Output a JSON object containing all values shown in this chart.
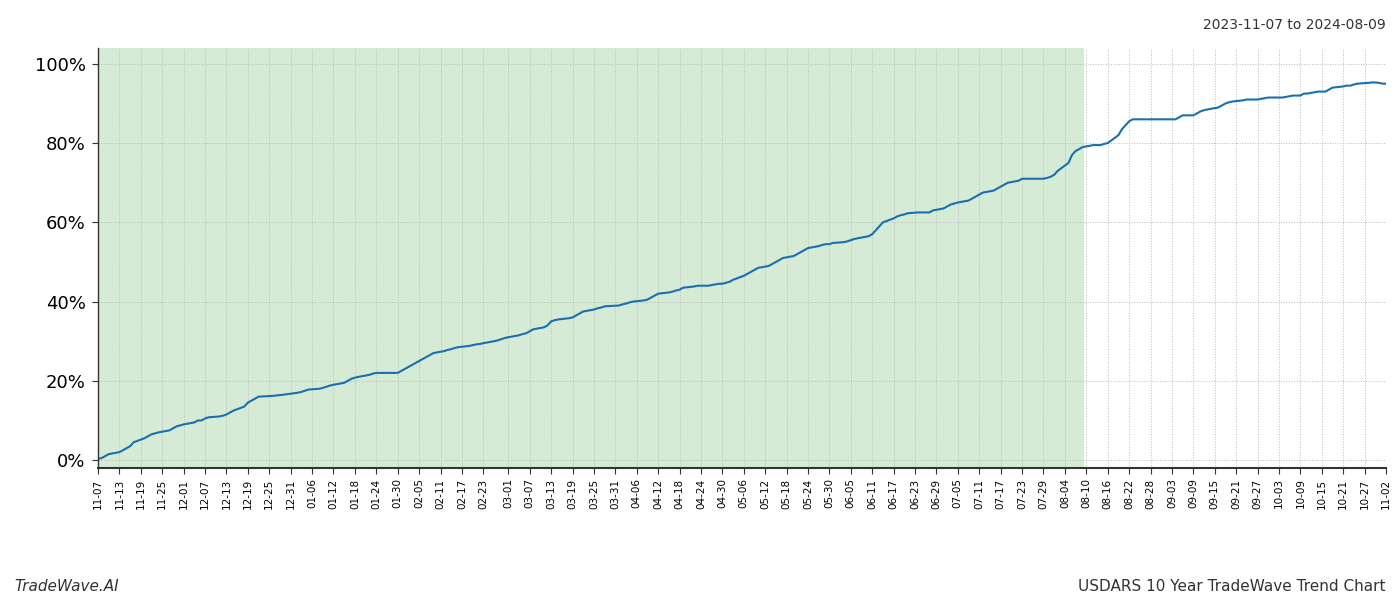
{
  "title_top_right": "2023-11-07 to 2024-08-09",
  "title_bottom_right": "USDARS 10 Year TradeWave Trend Chart",
  "title_bottom_left": "TradeWave.AI",
  "line_color": "#1a6faf",
  "line_width": 1.5,
  "fill_color": "#d6ebd6",
  "fill_alpha": 1.0,
  "fill_start_date": "2023-11-07",
  "fill_end_date": "2024-08-09",
  "background_color": "#ffffff",
  "grid_color": "#bbbbbb",
  "grid_style": ":",
  "ylim": [
    -2,
    104
  ],
  "yticks": [
    0,
    20,
    40,
    60,
    80,
    100
  ],
  "x_start": "2023-11-07",
  "x_end": "2024-11-02",
  "data_points": [
    [
      "2023-11-07",
      0.3
    ],
    [
      "2023-11-08",
      0.5
    ],
    [
      "2023-11-09",
      1.0
    ],
    [
      "2023-11-10",
      1.5
    ],
    [
      "2023-11-13",
      2.0
    ],
    [
      "2023-11-14",
      2.5
    ],
    [
      "2023-11-15",
      3.0
    ],
    [
      "2023-11-16",
      3.5
    ],
    [
      "2023-11-17",
      4.5
    ],
    [
      "2023-11-20",
      5.5
    ],
    [
      "2023-11-21",
      6.0
    ],
    [
      "2023-11-22",
      6.5
    ],
    [
      "2023-11-24",
      7.0
    ],
    [
      "2023-11-27",
      7.5
    ],
    [
      "2023-11-28",
      8.0
    ],
    [
      "2023-11-29",
      8.5
    ],
    [
      "2023-12-01",
      9.0
    ],
    [
      "2023-12-04",
      9.5
    ],
    [
      "2023-12-05",
      10.0
    ],
    [
      "2023-12-06",
      10.0
    ],
    [
      "2023-12-07",
      10.5
    ],
    [
      "2023-12-08",
      10.8
    ],
    [
      "2023-12-11",
      11.0
    ],
    [
      "2023-12-12",
      11.2
    ],
    [
      "2023-12-13",
      11.5
    ],
    [
      "2023-12-14",
      12.0
    ],
    [
      "2023-12-15",
      12.5
    ],
    [
      "2023-12-18",
      13.5
    ],
    [
      "2023-12-19",
      14.5
    ],
    [
      "2023-12-20",
      15.0
    ],
    [
      "2023-12-21",
      15.5
    ],
    [
      "2023-12-22",
      16.0
    ],
    [
      "2023-12-26",
      16.2
    ],
    [
      "2023-12-27",
      16.3
    ],
    [
      "2023-12-28",
      16.4
    ],
    [
      "2023-12-29",
      16.5
    ],
    [
      "2024-01-02",
      17.0
    ],
    [
      "2024-01-03",
      17.2
    ],
    [
      "2024-01-04",
      17.5
    ],
    [
      "2024-01-05",
      17.8
    ],
    [
      "2024-01-08",
      18.0
    ],
    [
      "2024-01-09",
      18.2
    ],
    [
      "2024-01-10",
      18.5
    ],
    [
      "2024-01-11",
      18.8
    ],
    [
      "2024-01-12",
      19.0
    ],
    [
      "2024-01-15",
      19.5
    ],
    [
      "2024-01-16",
      20.0
    ],
    [
      "2024-01-17",
      20.5
    ],
    [
      "2024-01-18",
      20.8
    ],
    [
      "2024-01-19",
      21.0
    ],
    [
      "2024-01-22",
      21.5
    ],
    [
      "2024-01-23",
      21.8
    ],
    [
      "2024-01-24",
      22.0
    ],
    [
      "2024-01-25",
      22.0
    ],
    [
      "2024-01-26",
      22.0
    ],
    [
      "2024-01-29",
      22.0
    ],
    [
      "2024-01-30",
      22.0
    ],
    [
      "2024-01-31",
      22.5
    ],
    [
      "2024-02-01",
      23.0
    ],
    [
      "2024-02-02",
      23.5
    ],
    [
      "2024-02-05",
      25.0
    ],
    [
      "2024-02-06",
      25.5
    ],
    [
      "2024-02-07",
      26.0
    ],
    [
      "2024-02-08",
      26.5
    ],
    [
      "2024-02-09",
      27.0
    ],
    [
      "2024-02-12",
      27.5
    ],
    [
      "2024-02-13",
      27.8
    ],
    [
      "2024-02-14",
      28.0
    ],
    [
      "2024-02-15",
      28.3
    ],
    [
      "2024-02-16",
      28.5
    ],
    [
      "2024-02-19",
      28.8
    ],
    [
      "2024-02-20",
      29.0
    ],
    [
      "2024-02-21",
      29.2
    ],
    [
      "2024-02-22",
      29.3
    ],
    [
      "2024-02-23",
      29.5
    ],
    [
      "2024-02-26",
      30.0
    ],
    [
      "2024-02-27",
      30.2
    ],
    [
      "2024-02-28",
      30.5
    ],
    [
      "2024-02-29",
      30.8
    ],
    [
      "2024-03-01",
      31.0
    ],
    [
      "2024-03-04",
      31.5
    ],
    [
      "2024-03-05",
      31.8
    ],
    [
      "2024-03-06",
      32.0
    ],
    [
      "2024-03-07",
      32.5
    ],
    [
      "2024-03-08",
      33.0
    ],
    [
      "2024-03-11",
      33.5
    ],
    [
      "2024-03-12",
      34.0
    ],
    [
      "2024-03-13",
      35.0
    ],
    [
      "2024-03-14",
      35.3
    ],
    [
      "2024-03-15",
      35.5
    ],
    [
      "2024-03-18",
      35.8
    ],
    [
      "2024-03-19",
      36.0
    ],
    [
      "2024-03-20",
      36.5
    ],
    [
      "2024-03-21",
      37.0
    ],
    [
      "2024-03-22",
      37.5
    ],
    [
      "2024-03-25",
      38.0
    ],
    [
      "2024-03-26",
      38.3
    ],
    [
      "2024-03-27",
      38.5
    ],
    [
      "2024-03-28",
      38.8
    ],
    [
      "2024-04-01",
      39.0
    ],
    [
      "2024-04-02",
      39.3
    ],
    [
      "2024-04-03",
      39.5
    ],
    [
      "2024-04-04",
      39.8
    ],
    [
      "2024-04-05",
      40.0
    ],
    [
      "2024-04-08",
      40.3
    ],
    [
      "2024-04-09",
      40.5
    ],
    [
      "2024-04-10",
      41.0
    ],
    [
      "2024-04-11",
      41.5
    ],
    [
      "2024-04-12",
      42.0
    ],
    [
      "2024-04-15",
      42.3
    ],
    [
      "2024-04-16",
      42.5
    ],
    [
      "2024-04-17",
      42.8
    ],
    [
      "2024-04-18",
      43.0
    ],
    [
      "2024-04-19",
      43.5
    ],
    [
      "2024-04-22",
      43.8
    ],
    [
      "2024-04-23",
      44.0
    ],
    [
      "2024-04-24",
      44.0
    ],
    [
      "2024-04-25",
      44.0
    ],
    [
      "2024-04-26",
      44.0
    ],
    [
      "2024-04-29",
      44.5
    ],
    [
      "2024-04-30",
      44.5
    ],
    [
      "2024-05-02",
      45.0
    ],
    [
      "2024-05-03",
      45.5
    ],
    [
      "2024-05-06",
      46.5
    ],
    [
      "2024-05-07",
      47.0
    ],
    [
      "2024-05-08",
      47.5
    ],
    [
      "2024-05-09",
      48.0
    ],
    [
      "2024-05-10",
      48.5
    ],
    [
      "2024-05-13",
      49.0
    ],
    [
      "2024-05-14",
      49.5
    ],
    [
      "2024-05-15",
      50.0
    ],
    [
      "2024-05-16",
      50.5
    ],
    [
      "2024-05-17",
      51.0
    ],
    [
      "2024-05-20",
      51.5
    ],
    [
      "2024-05-21",
      52.0
    ],
    [
      "2024-05-22",
      52.5
    ],
    [
      "2024-05-23",
      53.0
    ],
    [
      "2024-05-24",
      53.5
    ],
    [
      "2024-05-27",
      54.0
    ],
    [
      "2024-05-28",
      54.3
    ],
    [
      "2024-05-29",
      54.5
    ],
    [
      "2024-05-30",
      54.5
    ],
    [
      "2024-05-31",
      54.8
    ],
    [
      "2024-06-03",
      55.0
    ],
    [
      "2024-06-04",
      55.2
    ],
    [
      "2024-06-05",
      55.5
    ],
    [
      "2024-06-06",
      55.8
    ],
    [
      "2024-06-07",
      56.0
    ],
    [
      "2024-06-10",
      56.5
    ],
    [
      "2024-06-11",
      57.0
    ],
    [
      "2024-06-12",
      58.0
    ],
    [
      "2024-06-13",
      59.0
    ],
    [
      "2024-06-14",
      60.0
    ],
    [
      "2024-06-17",
      61.0
    ],
    [
      "2024-06-18",
      61.5
    ],
    [
      "2024-06-19",
      61.8
    ],
    [
      "2024-06-20",
      62.0
    ],
    [
      "2024-06-21",
      62.3
    ],
    [
      "2024-06-24",
      62.5
    ],
    [
      "2024-06-25",
      62.5
    ],
    [
      "2024-06-26",
      62.5
    ],
    [
      "2024-06-27",
      62.5
    ],
    [
      "2024-06-28",
      63.0
    ],
    [
      "2024-07-01",
      63.5
    ],
    [
      "2024-07-02",
      64.0
    ],
    [
      "2024-07-03",
      64.5
    ],
    [
      "2024-07-05",
      65.0
    ],
    [
      "2024-07-08",
      65.5
    ],
    [
      "2024-07-09",
      66.0
    ],
    [
      "2024-07-10",
      66.5
    ],
    [
      "2024-07-11",
      67.0
    ],
    [
      "2024-07-12",
      67.5
    ],
    [
      "2024-07-15",
      68.0
    ],
    [
      "2024-07-16",
      68.5
    ],
    [
      "2024-07-17",
      69.0
    ],
    [
      "2024-07-18",
      69.5
    ],
    [
      "2024-07-19",
      70.0
    ],
    [
      "2024-07-22",
      70.5
    ],
    [
      "2024-07-23",
      71.0
    ],
    [
      "2024-07-24",
      71.0
    ],
    [
      "2024-07-25",
      71.0
    ],
    [
      "2024-07-26",
      71.0
    ],
    [
      "2024-07-29",
      71.0
    ],
    [
      "2024-07-30",
      71.2
    ],
    [
      "2024-07-31",
      71.5
    ],
    [
      "2024-08-01",
      72.0
    ],
    [
      "2024-08-02",
      73.0
    ],
    [
      "2024-08-05",
      75.0
    ],
    [
      "2024-08-06",
      77.0
    ],
    [
      "2024-08-07",
      78.0
    ],
    [
      "2024-08-08",
      78.5
    ],
    [
      "2024-08-09",
      79.0
    ],
    [
      "2024-08-12",
      79.5
    ],
    [
      "2024-08-13",
      79.5
    ],
    [
      "2024-08-14",
      79.5
    ],
    [
      "2024-08-15",
      79.8
    ],
    [
      "2024-08-16",
      80.0
    ],
    [
      "2024-08-19",
      82.0
    ],
    [
      "2024-08-20",
      83.5
    ],
    [
      "2024-08-21",
      84.5
    ],
    [
      "2024-08-22",
      85.5
    ],
    [
      "2024-08-23",
      86.0
    ],
    [
      "2024-08-26",
      86.0
    ],
    [
      "2024-08-27",
      86.0
    ],
    [
      "2024-08-28",
      86.0
    ],
    [
      "2024-08-29",
      86.0
    ],
    [
      "2024-09-02",
      86.0
    ],
    [
      "2024-09-03",
      86.0
    ],
    [
      "2024-09-04",
      86.0
    ],
    [
      "2024-09-05",
      86.5
    ],
    [
      "2024-09-06",
      87.0
    ],
    [
      "2024-09-09",
      87.0
    ],
    [
      "2024-09-10",
      87.5
    ],
    [
      "2024-09-11",
      88.0
    ],
    [
      "2024-09-12",
      88.3
    ],
    [
      "2024-09-13",
      88.5
    ],
    [
      "2024-09-16",
      89.0
    ],
    [
      "2024-09-17",
      89.5
    ],
    [
      "2024-09-18",
      90.0
    ],
    [
      "2024-09-19",
      90.3
    ],
    [
      "2024-09-20",
      90.5
    ],
    [
      "2024-09-23",
      90.8
    ],
    [
      "2024-09-24",
      91.0
    ],
    [
      "2024-09-25",
      91.0
    ],
    [
      "2024-09-26",
      91.0
    ],
    [
      "2024-09-27",
      91.0
    ],
    [
      "2024-09-30",
      91.5
    ],
    [
      "2024-10-01",
      91.5
    ],
    [
      "2024-10-02",
      91.5
    ],
    [
      "2024-10-03",
      91.5
    ],
    [
      "2024-10-04",
      91.5
    ],
    [
      "2024-10-07",
      92.0
    ],
    [
      "2024-10-08",
      92.0
    ],
    [
      "2024-10-09",
      92.0
    ],
    [
      "2024-10-10",
      92.5
    ],
    [
      "2024-10-11",
      92.5
    ],
    [
      "2024-10-14",
      93.0
    ],
    [
      "2024-10-15",
      93.0
    ],
    [
      "2024-10-16",
      93.0
    ],
    [
      "2024-10-17",
      93.5
    ],
    [
      "2024-10-18",
      94.0
    ],
    [
      "2024-10-21",
      94.3
    ],
    [
      "2024-10-22",
      94.5
    ],
    [
      "2024-10-23",
      94.5
    ],
    [
      "2024-10-24",
      94.8
    ],
    [
      "2024-10-25",
      95.0
    ],
    [
      "2024-10-28",
      95.2
    ],
    [
      "2024-10-29",
      95.3
    ],
    [
      "2024-10-30",
      95.3
    ],
    [
      "2024-10-31",
      95.2
    ],
    [
      "2024-11-01",
      95.0
    ],
    [
      "2024-11-02",
      95.0
    ]
  ],
  "xtick_dates": [
    "2023-11-07",
    "2023-11-13",
    "2023-11-19",
    "2023-11-25",
    "2023-12-01",
    "2023-12-07",
    "2023-12-13",
    "2023-12-19",
    "2023-12-25",
    "2023-12-31",
    "2024-01-06",
    "2024-01-12",
    "2024-01-18",
    "2024-01-24",
    "2024-01-30",
    "2024-02-05",
    "2024-02-11",
    "2024-02-17",
    "2024-02-23",
    "2024-03-01",
    "2024-03-07",
    "2024-03-13",
    "2024-03-19",
    "2024-03-25",
    "2024-03-31",
    "2024-04-06",
    "2024-04-12",
    "2024-04-18",
    "2024-04-24",
    "2024-04-30",
    "2024-05-06",
    "2024-05-12",
    "2024-05-18",
    "2024-05-24",
    "2024-05-30",
    "2024-06-05",
    "2024-06-11",
    "2024-06-17",
    "2024-06-23",
    "2024-06-29",
    "2024-07-05",
    "2024-07-11",
    "2024-07-17",
    "2024-07-23",
    "2024-07-29",
    "2024-08-04",
    "2024-08-10",
    "2024-08-16",
    "2024-08-22",
    "2024-08-28",
    "2024-09-03",
    "2024-09-09",
    "2024-09-15",
    "2024-09-21",
    "2024-09-27",
    "2024-10-03",
    "2024-10-09",
    "2024-10-15",
    "2024-10-21",
    "2024-10-27",
    "2024-11-02"
  ],
  "xtick_labels": [
    "11-07",
    "11-13",
    "11-19",
    "11-25",
    "12-01",
    "12-07",
    "12-13",
    "12-19",
    "12-25",
    "12-31",
    "01-06",
    "01-12",
    "01-18",
    "01-24",
    "01-30",
    "02-05",
    "02-11",
    "02-17",
    "02-23",
    "03-01",
    "03-07",
    "03-13",
    "03-19",
    "03-25",
    "03-31",
    "04-06",
    "04-12",
    "04-18",
    "04-24",
    "04-30",
    "05-06",
    "05-12",
    "05-18",
    "05-24",
    "05-30",
    "06-05",
    "06-11",
    "06-17",
    "06-23",
    "06-29",
    "07-05",
    "07-11",
    "07-17",
    "07-23",
    "07-29",
    "08-04",
    "08-10",
    "08-16",
    "08-22",
    "08-28",
    "09-03",
    "09-09",
    "09-15",
    "09-21",
    "09-27",
    "10-03",
    "10-09",
    "10-15",
    "10-21",
    "10-27",
    "11-02"
  ]
}
